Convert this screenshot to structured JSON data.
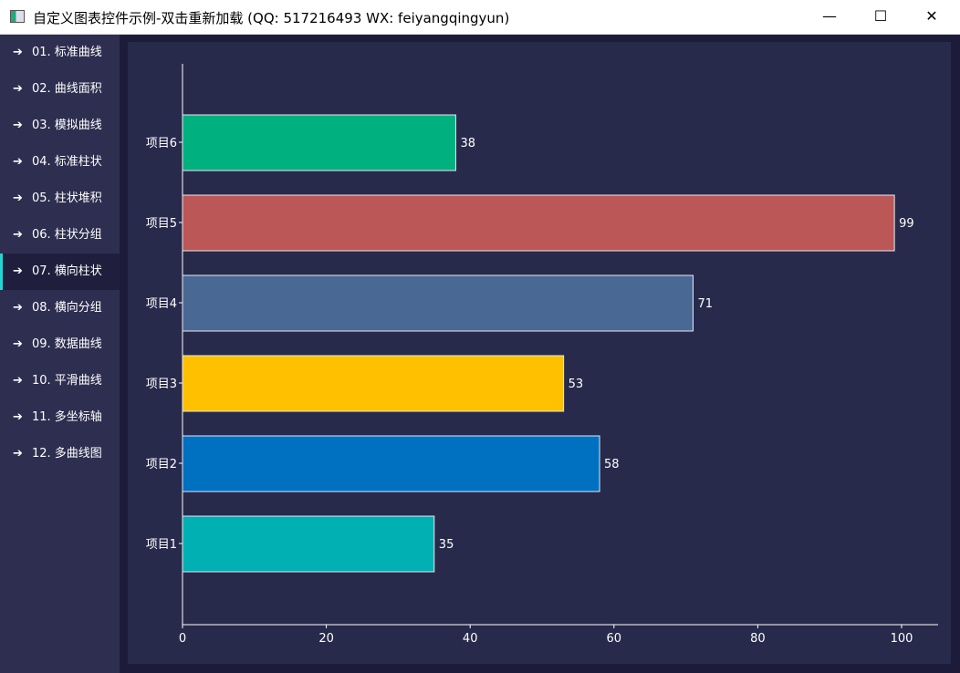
{
  "window": {
    "title": "自定义图表控件示例-双击重新加载 (QQ: 517216493 WX: feiyangqingyun)",
    "minimize": "—",
    "maximize": "☐",
    "close": "✕"
  },
  "sidebar": {
    "items": [
      {
        "label": "01. 标准曲线"
      },
      {
        "label": "02. 曲线面积"
      },
      {
        "label": "03. 模拟曲线"
      },
      {
        "label": "04. 标准柱状"
      },
      {
        "label": "05. 柱状堆积"
      },
      {
        "label": "06. 柱状分组"
      },
      {
        "label": "07. 横向柱状",
        "selected": true
      },
      {
        "label": "08. 横向分组"
      },
      {
        "label": "09. 数据曲线"
      },
      {
        "label": "10. 平滑曲线"
      },
      {
        "label": "11. 多坐标轴"
      },
      {
        "label": "12. 多曲线图"
      }
    ],
    "icon": "arrow-right-icon"
  },
  "chart_data": {
    "type": "bar",
    "orientation": "horizontal",
    "categories": [
      "项目1",
      "项目2",
      "项目3",
      "项目4",
      "项目5",
      "项目6"
    ],
    "values": [
      35,
      58,
      53,
      71,
      99,
      38
    ],
    "colors": [
      "#00b0b3",
      "#0070c0",
      "#ffc000",
      "#4a6894",
      "#bc5757",
      "#00b07e"
    ],
    "xlim": [
      0,
      100
    ],
    "xticks": [
      0,
      20,
      40,
      60,
      80,
      100
    ],
    "grid": false,
    "data_labels": true
  }
}
